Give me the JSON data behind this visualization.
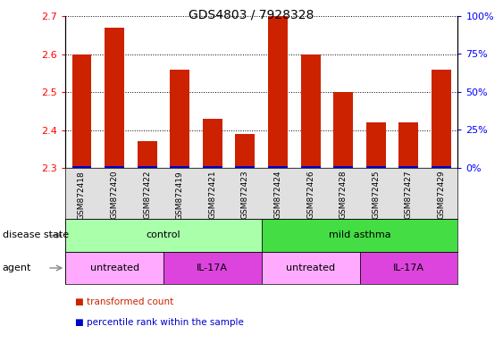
{
  "title": "GDS4803 / 7928328",
  "samples": [
    "GSM872418",
    "GSM872420",
    "GSM872422",
    "GSM872419",
    "GSM872421",
    "GSM872423",
    "GSM872424",
    "GSM872426",
    "GSM872428",
    "GSM872425",
    "GSM872427",
    "GSM872429"
  ],
  "transformed_count": [
    2.6,
    2.67,
    2.37,
    2.56,
    2.43,
    2.39,
    2.7,
    2.6,
    2.5,
    2.42,
    2.42,
    2.56
  ],
  "percentile_rank_vals": [
    1.0,
    1.0,
    1.0,
    1.0,
    1.0,
    1.0,
    1.0,
    1.0,
    1.0,
    1.0,
    1.0,
    1.0
  ],
  "ylim_left": [
    2.3,
    2.7
  ],
  "ylim_right": [
    0,
    100
  ],
  "yticks_left": [
    2.3,
    2.4,
    2.5,
    2.6,
    2.7
  ],
  "yticks_right": [
    0,
    25,
    50,
    75,
    100
  ],
  "bar_color_red": "#cc2200",
  "bar_color_blue": "#0000cc",
  "disease_state_groups": [
    {
      "label": "control",
      "start": 0,
      "end": 6,
      "color": "#aaffaa"
    },
    {
      "label": "mild asthma",
      "start": 6,
      "end": 12,
      "color": "#44dd44"
    }
  ],
  "agent_groups": [
    {
      "label": "untreated",
      "start": 0,
      "end": 3,
      "color": "#ffaaff"
    },
    {
      "label": "IL-17A",
      "start": 3,
      "end": 6,
      "color": "#dd44dd"
    },
    {
      "label": "untreated",
      "start": 6,
      "end": 9,
      "color": "#ffaaff"
    },
    {
      "label": "IL-17A",
      "start": 9,
      "end": 12,
      "color": "#dd44dd"
    }
  ]
}
